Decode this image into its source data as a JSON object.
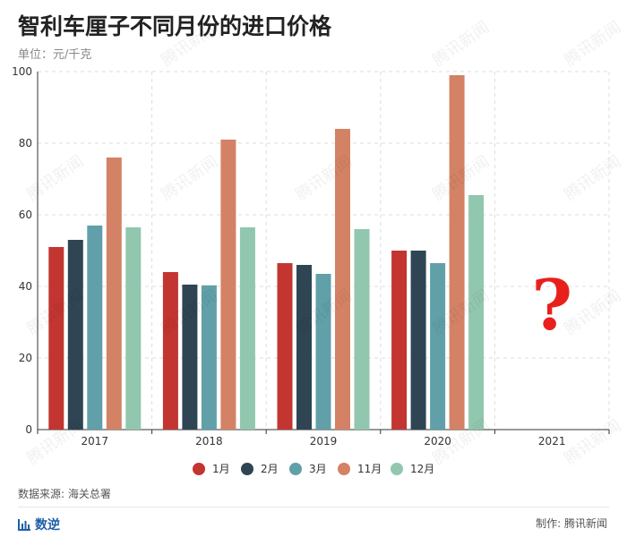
{
  "title": "智利车厘子不同月份的进口价格",
  "unit": "单位：元/千克",
  "source": "数据来源: 海关总署",
  "brand": "数逆",
  "credit": "制作: 腾讯新闻",
  "watermark": "腾讯新闻",
  "colors": {
    "jan": "#c23531",
    "feb": "#2f4554",
    "mar": "#61a0a8",
    "nov": "#d48265",
    "dec": "#91c7ae",
    "question": "#e8201c"
  },
  "chart_data": {
    "type": "bar",
    "categories": [
      "2017",
      "2018",
      "2019",
      "2020",
      "2021"
    ],
    "series": [
      {
        "name": "1月",
        "values": [
          51,
          44,
          46.5,
          50,
          null
        ]
      },
      {
        "name": "2月",
        "values": [
          53,
          40.5,
          46,
          50,
          null
        ]
      },
      {
        "name": "3月",
        "values": [
          57,
          40.3,
          43.5,
          46.5,
          null
        ]
      },
      {
        "name": "11月",
        "values": [
          76,
          81,
          84,
          99,
          null
        ]
      },
      {
        "name": "12月",
        "values": [
          56.5,
          56.5,
          56,
          65.5,
          null
        ]
      }
    ],
    "ylim": [
      0,
      100
    ],
    "yticks": [
      "0",
      "20",
      "40",
      "60",
      "80",
      "100"
    ],
    "grid": true,
    "legend_position": "bottom",
    "annotation": "?"
  }
}
